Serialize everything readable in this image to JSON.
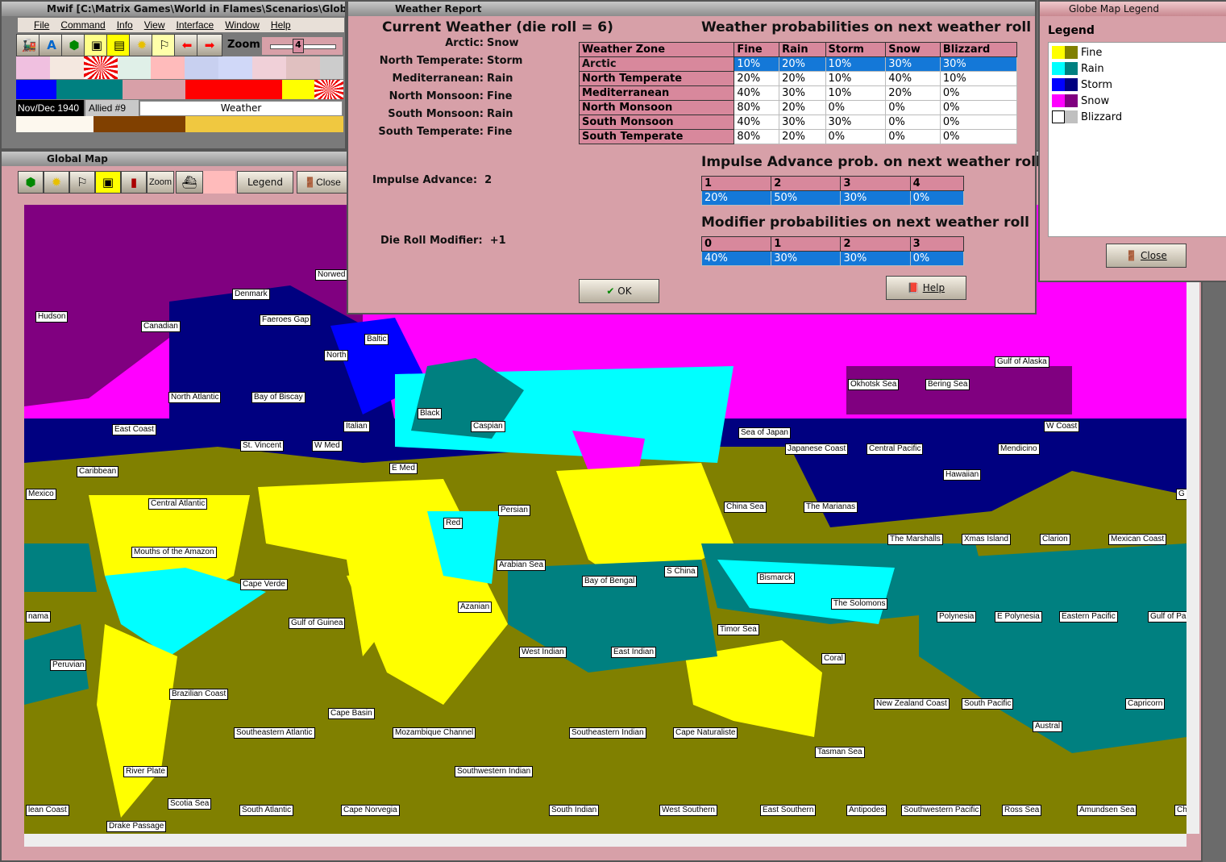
{
  "main": {
    "title": "Mwif [C:\\Matrix Games\\World in Flames\\Scenarios\\Glob",
    "menu": [
      "File",
      "Command",
      "Info",
      "View",
      "Interface",
      "Window",
      "Help"
    ],
    "zoom_label": "Zoom",
    "zoom_value": "4",
    "date": "Nov/Dec 1940",
    "turn": "Allied #9",
    "phase": "Weather"
  },
  "global_map": {
    "title": "Global Map",
    "zoom_label": "Zoom",
    "legend_label": "Legend",
    "close_label": "Close",
    "sea_areas": [
      "Hudson",
      "Canadian",
      "Denmark",
      "Norwed",
      "Faeroes Gap",
      "Baltic",
      "North",
      "North Atlantic",
      "Bay of Biscay",
      "East Coast",
      "Black",
      "Italian",
      "Caspian",
      "St. Vincent",
      "W Med",
      "E Med",
      "Caribbean",
      "Mexico",
      "Central Atlantic",
      "Persian",
      "Red",
      "Mouths of the Amazon",
      "Arabian Sea",
      "Cape Verde",
      "Bay of Bengal",
      "S China",
      "Azanian",
      "nama",
      "Gulf of Guinea",
      "West Indian",
      "East Indian",
      "Peruvian",
      "Brazilian Coast",
      "Cape Basin",
      "Southeastern Atlantic",
      "Mozambique Channel",
      "Southeastern Indian",
      "Cape Naturaliste",
      "River Plate",
      "Southwestern Indian",
      "Scotia Sea",
      "lean Coast",
      "South Atlantic",
      "Cape Norvegia",
      "South Indian",
      "West Southern",
      "East Southern",
      "Antipodes",
      "Southwestern Pacific",
      "Ross Sea",
      "Amundsen Sea",
      "Chi",
      "Drake Passage",
      "Tasman Sea",
      "New Zealand Coast",
      "South Pacific",
      "Austral",
      "Capricorn",
      "Coral",
      "Timor Sea",
      "The Solomons",
      "Polynesia",
      "E Polynesia",
      "Eastern Pacific",
      "Gulf of Pa",
      "Bismarck",
      "China Sea",
      "The Marianas",
      "The Marshalls",
      "Xmas Island",
      "Clarion",
      "Mexican Coast",
      "G",
      "Hawaiian",
      "Mendicino",
      "W Coast",
      "Central Pacific",
      "Japanese Coast",
      "Sea of Japan",
      "Okhotsk Sea",
      "Bering Sea",
      "Gulf of Alaska"
    ]
  },
  "weather": {
    "title": "Weather Report",
    "current_heading": "Current Weather (die roll = 6)",
    "current": [
      {
        "zone": "Arctic:",
        "value": "Snow"
      },
      {
        "zone": "North Temperate:",
        "value": "Storm"
      },
      {
        "zone": "Mediterranean:",
        "value": "Rain"
      },
      {
        "zone": "North Monsoon:",
        "value": "Fine"
      },
      {
        "zone": "South Monsoon:",
        "value": "Rain"
      },
      {
        "zone": "South Temperate:",
        "value": "Fine"
      }
    ],
    "impulse_label": "Impulse Advance:",
    "impulse_value": "2",
    "modifier_label": "Die Roll Modifier:",
    "modifier_value": "+1",
    "prob_heading": "Weather probabilities on next weather roll",
    "prob_headers": [
      "Weather Zone",
      "Fine",
      "Rain",
      "Storm",
      "Snow",
      "Blizzard"
    ],
    "prob_rows": [
      [
        "Arctic",
        "10%",
        "20%",
        "10%",
        "30%",
        "30%"
      ],
      [
        "North Temperate",
        "20%",
        "20%",
        "10%",
        "40%",
        "10%"
      ],
      [
        "Mediterranean",
        "40%",
        "30%",
        "10%",
        "20%",
        "0%"
      ],
      [
        "North Monsoon",
        "80%",
        "20%",
        "0%",
        "0%",
        "0%"
      ],
      [
        "South Monsoon",
        "40%",
        "30%",
        "30%",
        "0%",
        "0%"
      ],
      [
        "South Temperate",
        "80%",
        "20%",
        "0%",
        "0%",
        "0%"
      ]
    ],
    "impulse_heading": "Impulse Advance prob. on next weather roll",
    "impulse_headers": [
      "1",
      "2",
      "3",
      "4"
    ],
    "impulse_probs": [
      "20%",
      "50%",
      "30%",
      "0%"
    ],
    "modifier_heading": "Modifier probabilities on next weather roll",
    "modifier_headers": [
      "0",
      "1",
      "2",
      "3"
    ],
    "modifier_probs": [
      "40%",
      "30%",
      "30%",
      "0%"
    ],
    "ok_label": "OK",
    "help_label": "Help"
  },
  "legend": {
    "title": "Globe Map Legend",
    "heading": "Legend",
    "close_label": "Close",
    "items": [
      {
        "label": "Fine",
        "colors": [
          "#ffff00",
          "#808000"
        ]
      },
      {
        "label": "Rain",
        "colors": [
          "#00ffff",
          "#008080"
        ]
      },
      {
        "label": "Storm",
        "colors": [
          "#0000ff",
          "#000080"
        ]
      },
      {
        "label": "Snow",
        "colors": [
          "#ff00ff",
          "#800080"
        ]
      },
      {
        "label": "Blizzard",
        "colors": [
          "#ffffff",
          "#c0c0c0"
        ]
      }
    ]
  }
}
